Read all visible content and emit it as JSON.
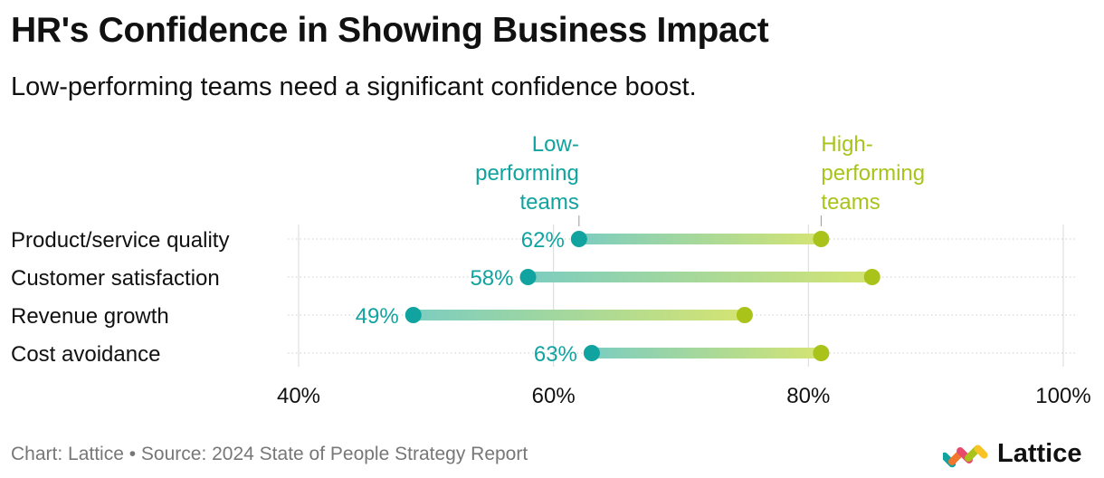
{
  "header": {
    "title": "HR's Confidence in Showing Business Impact",
    "subtitle": "Low-performing teams need a significant confidence boost."
  },
  "chart_data": {
    "type": "dumbbell",
    "categories": [
      "Product/service quality",
      "Customer satisfaction",
      "Revenue growth",
      "Cost avoidance"
    ],
    "series": [
      {
        "name": "Low-performing teams",
        "name_lines": [
          "Low-",
          "performing",
          "teams"
        ],
        "values": [
          62,
          58,
          49,
          63
        ],
        "value_labels": [
          "62%",
          "58%",
          "49%",
          "63%"
        ],
        "color": "#10a3a0"
      },
      {
        "name": "High-performing teams",
        "name_lines": [
          "High-",
          "performing",
          "teams"
        ],
        "values": [
          81,
          85,
          75,
          81
        ],
        "color": "#a9c31a"
      }
    ],
    "xlim": [
      40,
      100
    ],
    "xticks": [
      40,
      60,
      80,
      100
    ],
    "xtick_labels": [
      "40%",
      "60%",
      "80%",
      "100%"
    ],
    "grid": true
  },
  "footer": {
    "credit": "Chart: Lattice • Source: 2024 State of People Strategy Report"
  },
  "brand": {
    "name": "Lattice",
    "logo_icon": "lattice-logo-icon"
  },
  "colors": {
    "low": "#10a3a0",
    "high": "#a9c31a",
    "grid": "#d9d9d9",
    "footer": "#777777"
  }
}
